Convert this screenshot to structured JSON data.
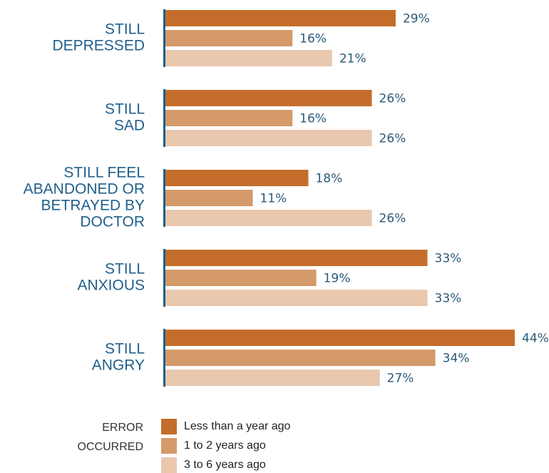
{
  "colors": {
    "series": [
      "#c46d2a",
      "#d49a6a",
      "#e9c8ae"
    ],
    "axis": "#1f5f8b",
    "category_label": "#1f5f8b",
    "value_label": "#2a5a7a"
  },
  "legend": {
    "title_lines": [
      "ERROR",
      "OCCURRED"
    ]
  },
  "chart_data": {
    "type": "bar",
    "orientation": "horizontal",
    "categories": [
      [
        "STILL",
        "DEPRESSED"
      ],
      [
        "STILL",
        "SAD"
      ],
      [
        "STILL FEEL",
        "ABANDONED OR",
        "BETRAYED BY",
        "DOCTOR"
      ],
      [
        "STILL",
        "ANXIOUS"
      ],
      [
        "STILL",
        "ANGRY"
      ]
    ],
    "series": [
      {
        "name": "Less than a year ago",
        "values": [
          29,
          26,
          18,
          33,
          44
        ]
      },
      {
        "name": "1 to 2 years ago",
        "values": [
          16,
          16,
          11,
          19,
          34
        ]
      },
      {
        "name": "3 to 6 years ago",
        "values": [
          21,
          26,
          26,
          33,
          27
        ]
      }
    ],
    "value_suffix": "%",
    "xlim": [
      0,
      44
    ],
    "grid": false,
    "legend_position": "bottom-left"
  }
}
